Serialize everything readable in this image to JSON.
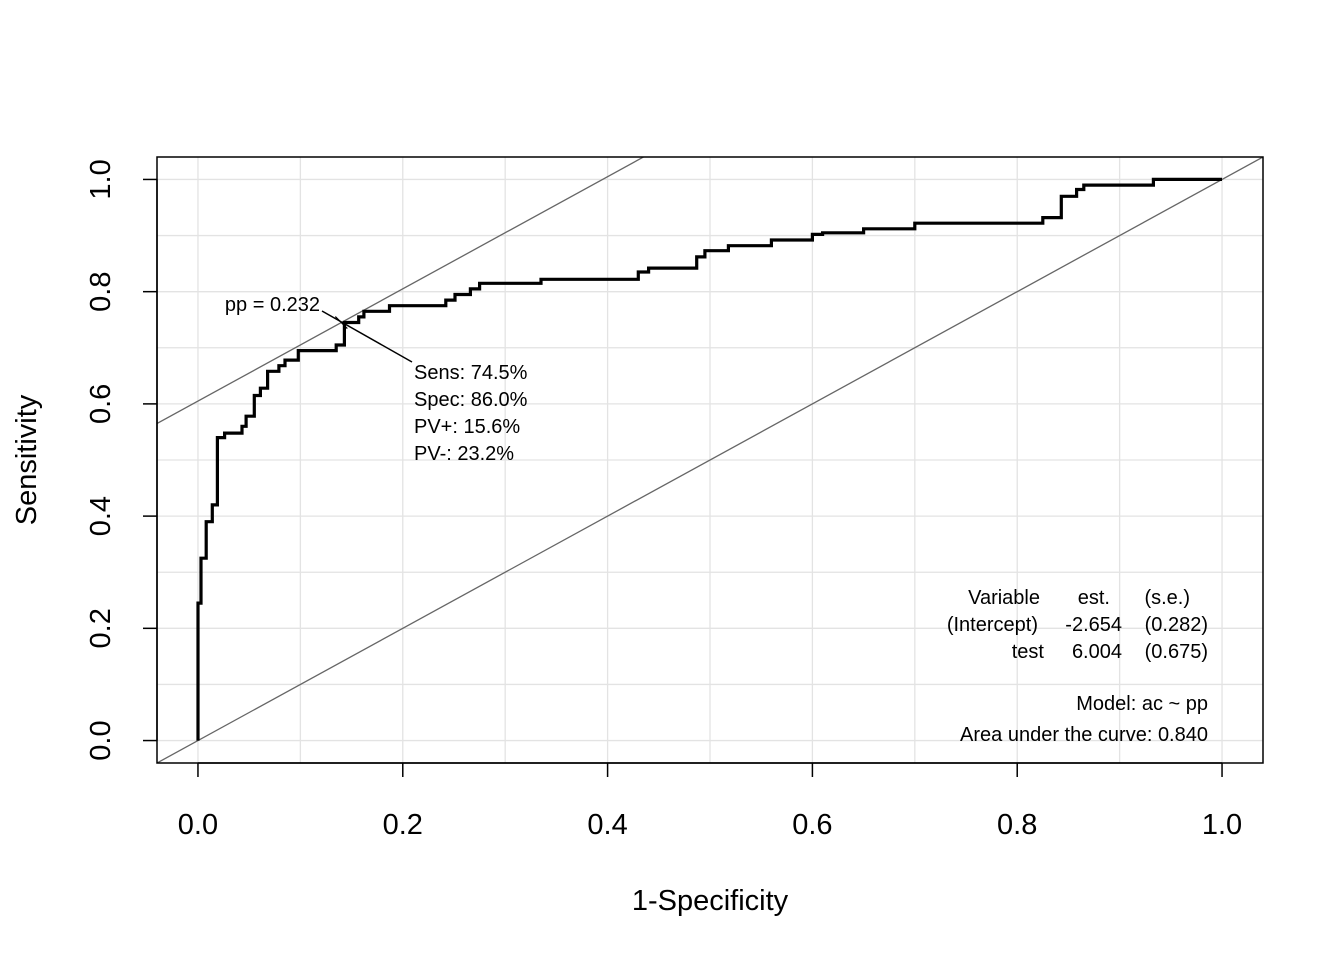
{
  "chart_data": {
    "type": "line",
    "title": "",
    "xlabel": "1-Specificity",
    "ylabel": "Sensitivity",
    "xlim": [
      -0.04,
      1.04
    ],
    "ylim": [
      -0.04,
      1.04
    ],
    "x_ticks": [
      "0.0",
      "0.2",
      "0.4",
      "0.6",
      "0.8",
      "1.0"
    ],
    "y_ticks": [
      "0.0",
      "0.2",
      "0.4",
      "0.6",
      "0.8",
      "1.0"
    ],
    "grid": true,
    "reference_lines": [
      {
        "intercept": 0.0,
        "slope": 1.0,
        "color": "#666666"
      },
      {
        "intercept": 0.605,
        "slope": 1.0,
        "color": "#666666"
      }
    ],
    "series": [
      {
        "color": "#000000",
        "x": [
          0.0,
          0.0,
          0.003,
          0.003,
          0.008,
          0.008,
          0.014,
          0.014,
          0.019,
          0.019,
          0.026,
          0.026,
          0.031,
          0.031,
          0.043,
          0.043,
          0.047,
          0.047,
          0.055,
          0.055,
          0.061,
          0.061,
          0.068,
          0.068,
          0.079,
          0.079,
          0.085,
          0.085,
          0.098,
          0.098,
          0.135,
          0.135,
          0.143,
          0.143,
          0.157,
          0.157,
          0.162,
          0.162,
          0.187,
          0.187,
          0.242,
          0.242,
          0.251,
          0.251,
          0.266,
          0.266,
          0.275,
          0.275,
          0.335,
          0.335,
          0.43,
          0.43,
          0.44,
          0.44,
          0.487,
          0.487,
          0.495,
          0.495,
          0.518,
          0.518,
          0.56,
          0.56,
          0.6,
          0.6,
          0.61,
          0.61,
          0.65,
          0.65,
          0.7,
          0.7,
          0.825,
          0.825,
          0.843,
          0.843,
          0.858,
          0.858,
          0.865,
          0.865,
          0.933,
          0.933,
          1.0
        ],
        "y": [
          0.0,
          0.245,
          0.245,
          0.325,
          0.325,
          0.39,
          0.39,
          0.42,
          0.42,
          0.54,
          0.54,
          0.548,
          0.548,
          0.548,
          0.548,
          0.56,
          0.56,
          0.578,
          0.578,
          0.615,
          0.615,
          0.628,
          0.628,
          0.658,
          0.658,
          0.668,
          0.668,
          0.678,
          0.678,
          0.695,
          0.695,
          0.705,
          0.705,
          0.745,
          0.745,
          0.755,
          0.755,
          0.765,
          0.765,
          0.775,
          0.775,
          0.785,
          0.785,
          0.795,
          0.795,
          0.805,
          0.805,
          0.815,
          0.815,
          0.822,
          0.822,
          0.835,
          0.835,
          0.842,
          0.842,
          0.862,
          0.862,
          0.873,
          0.873,
          0.882,
          0.882,
          0.892,
          0.892,
          0.902,
          0.902,
          0.905,
          0.905,
          0.912,
          0.912,
          0.922,
          0.922,
          0.932,
          0.932,
          0.97,
          0.97,
          0.982,
          0.982,
          0.99,
          0.99,
          1.0,
          1.0
        ]
      }
    ],
    "optimal_point": {
      "x": 0.14,
      "y": 0.745,
      "label": "pp = 0.232",
      "sens": "Sens: 74.5%",
      "spec": "Spec: 86.0%",
      "ppv": "PV+: 15.6%",
      "npv": "PV-: 23.2%"
    },
    "coef_table": {
      "header": [
        "Variable",
        "est.",
        "(s.e.)"
      ],
      "rows": [
        [
          "(Intercept)",
          "-2.654",
          "(0.282)"
        ],
        [
          "test",
          "6.004",
          "(0.675)"
        ]
      ]
    },
    "model": "Model:  ac ~ pp",
    "auc": "Area under the curve: 0.840"
  }
}
